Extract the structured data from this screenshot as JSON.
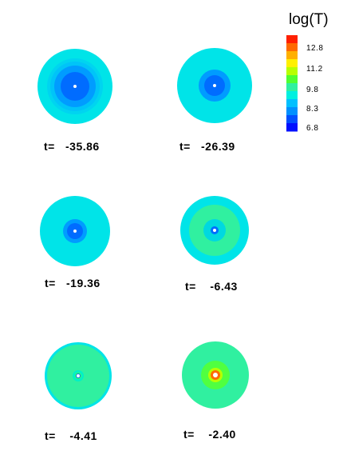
{
  "legend": {
    "title": "log(T)",
    "ticks": [
      "12.8",
      "11.2",
      "9.8",
      "8.3",
      "6.8"
    ],
    "colors": [
      "#ff2000",
      "#ff6a00",
      "#ffb000",
      "#fff000",
      "#b8ff00",
      "#50ff30",
      "#30f0a0",
      "#00f0e0",
      "#00c0ff",
      "#0090ff",
      "#0050ff",
      "#0010ff"
    ]
  },
  "panels": [
    {
      "time_label": "t=   -35.86",
      "layers": [
        "#00e4e8",
        "#00d4f0",
        "#00c4f8",
        "#009cff",
        "#006cff",
        "#ffffff"
      ]
    },
    {
      "time_label": "t=   -26.39",
      "layers": [
        "#00e4e8",
        "#009cff",
        "#006cff",
        "#ffffff"
      ]
    },
    {
      "time_label": "t=   -19.36",
      "layers": [
        "#00e4e8",
        "#009cff",
        "#006cff",
        "#ffffff"
      ]
    },
    {
      "time_label": "t=    -6.43",
      "layers": [
        "#00e4e8",
        "#30f0a0",
        "#00d8e0",
        "#006cff",
        "#ffffff"
      ]
    },
    {
      "time_label": "t=    -4.41",
      "layers": [
        "#00e4e8",
        "#30f0a0",
        "#00f0c8",
        "#40ff60",
        "#006cff",
        "#ffffff"
      ]
    },
    {
      "time_label": "t=    -2.40",
      "layers": [
        "#30f0a0",
        "#50ff40",
        "#b8ff00",
        "#ff6a00",
        "#ffffff"
      ]
    }
  ]
}
